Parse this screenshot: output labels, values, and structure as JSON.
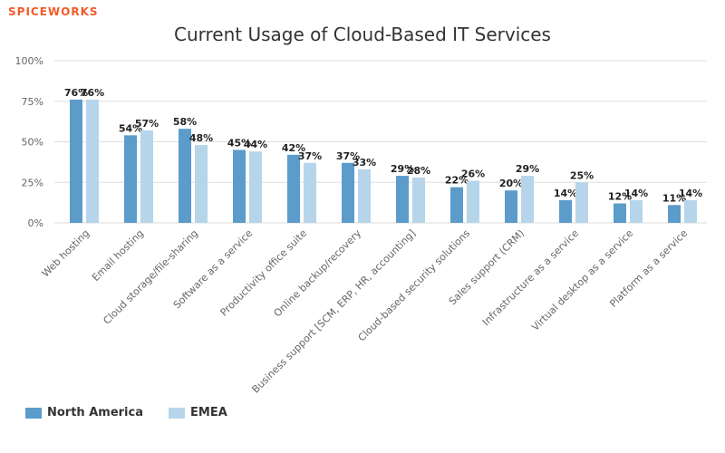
{
  "logo": {
    "part1": "SPICE",
    "part2": "WORKS"
  },
  "colors": {
    "north_america": "#5b9ccb",
    "emea": "#b6d5eb",
    "grid": "#dddddd",
    "axis_text": "#666666"
  },
  "chart_data": {
    "type": "bar",
    "title": "Current Usage of Cloud-Based IT Services",
    "xlabel": "",
    "ylabel": "",
    "ylim": [
      0,
      100
    ],
    "yticks": [
      0,
      25,
      50,
      75,
      100
    ],
    "ytick_labels": [
      "0%",
      "25%",
      "50%",
      "75%",
      "100%"
    ],
    "grid": true,
    "legend_position": "bottom-left",
    "categories": [
      "Web hosting",
      "Email hosting",
      "Cloud storage/file-sharing",
      "Software as a service",
      "Productivity office suite",
      "Online backup/recovery",
      "Business support [SCM, ERP, HR, accounting]",
      "Cloud-based security solutions",
      "Sales support (CRM)",
      "Infrastructure as a service",
      "Virtual desktop as a service",
      "Platform as a service"
    ],
    "series": [
      {
        "name": "North America",
        "values": [
          76,
          54,
          58,
          45,
          42,
          37,
          29,
          22,
          20,
          14,
          12,
          11
        ],
        "labels": [
          "76%",
          "54%",
          "58%",
          "45%",
          "42%",
          "37%",
          "29%",
          "22%",
          "20%",
          "14%",
          "12%",
          "11%"
        ]
      },
      {
        "name": "EMEA",
        "values": [
          76,
          57,
          48,
          44,
          37,
          33,
          28,
          26,
          29,
          25,
          14,
          14
        ],
        "labels": [
          "76%",
          "57%",
          "48%",
          "44%",
          "37%",
          "33%",
          "28%",
          "26%",
          "29%",
          "25%",
          "14%",
          "14%"
        ]
      }
    ]
  }
}
